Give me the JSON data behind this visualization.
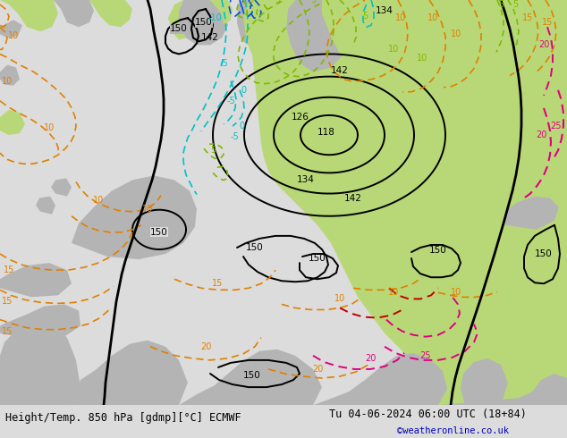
{
  "title_left": "Height/Temp. 850 hPa [gdmp][°C] ECMWF",
  "title_right": "Tu 04-06-2024 06:00 UTC (18+84)",
  "credit": "©weatheronline.co.uk",
  "bg_color": "#dcdcdc",
  "light_green": "#b8d878",
  "mid_green": "#a0c860",
  "gray_land": "#b4b4b4",
  "ocean_color": "#dcdcdc",
  "fig_width": 6.34,
  "fig_height": 4.9,
  "dpi": 100,
  "footer_fontsize": 8.5,
  "credit_color": "#0000bb",
  "black_lw": 2.0,
  "thin_lw": 1.2,
  "cyan_color": "#00c0c8",
  "blue_color": "#0050e0",
  "orange_color": "#e08000",
  "green_color": "#80b800",
  "pink_color": "#e00080",
  "red_color": "#c00000"
}
